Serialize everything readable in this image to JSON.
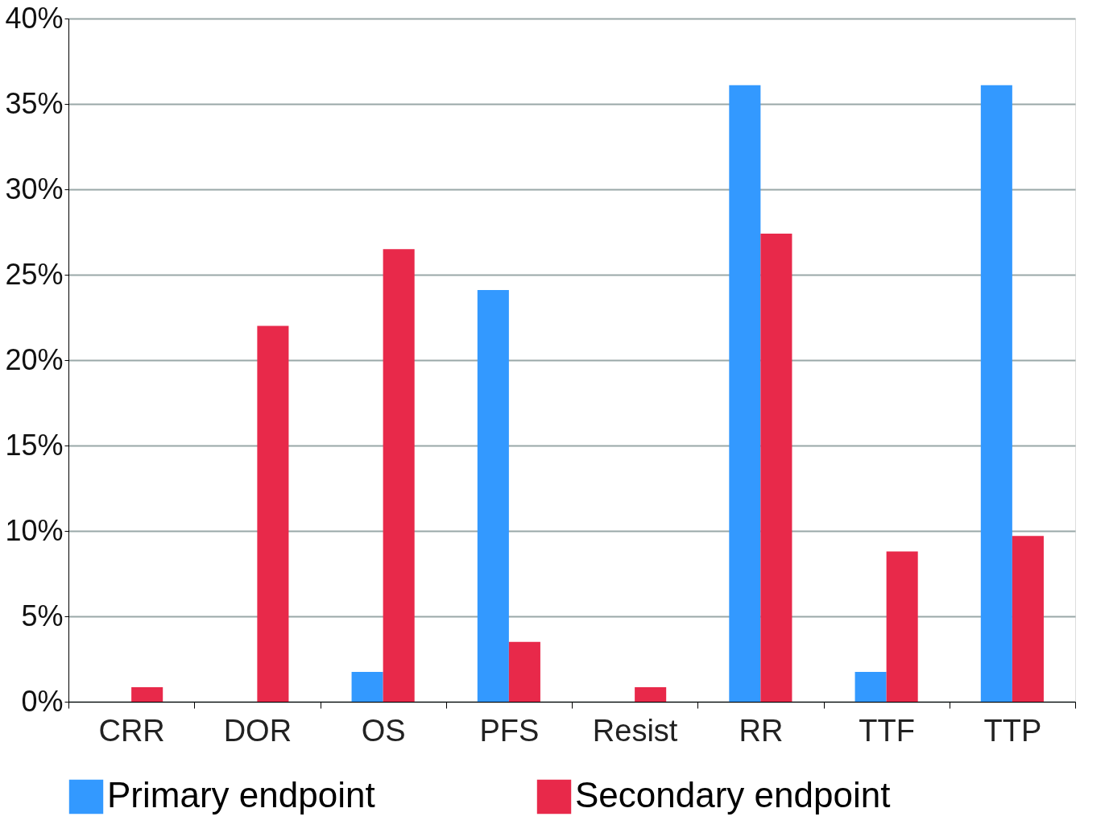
{
  "chart_data": {
    "type": "bar",
    "categories": [
      "CRR",
      "DOR",
      "OS",
      "PFS",
      "Resist",
      "RR",
      "TTF",
      "TTP"
    ],
    "series": [
      {
        "name": "Primary endpoint",
        "color": "#3399ff",
        "values": [
          0,
          0,
          1.75,
          24.1,
          0,
          36.1,
          1.75,
          36.1
        ]
      },
      {
        "name": "Secondary endpoint",
        "color": "#e8294a",
        "values": [
          0.85,
          22.0,
          26.5,
          3.5,
          0.85,
          27.4,
          8.8,
          9.7
        ]
      }
    ],
    "ylim": [
      0,
      40
    ],
    "yticks": [
      {
        "value": 0,
        "label": "0%"
      },
      {
        "value": 5,
        "label": "5%"
      },
      {
        "value": 10,
        "label": "10%"
      },
      {
        "value": 15,
        "label": "15%"
      },
      {
        "value": 20,
        "label": "20%"
      },
      {
        "value": 25,
        "label": "25%"
      },
      {
        "value": 30,
        "label": "30%"
      },
      {
        "value": 35,
        "label": "35%"
      },
      {
        "value": 40,
        "label": "40%"
      }
    ],
    "grid": "y",
    "legend": "bottom"
  }
}
